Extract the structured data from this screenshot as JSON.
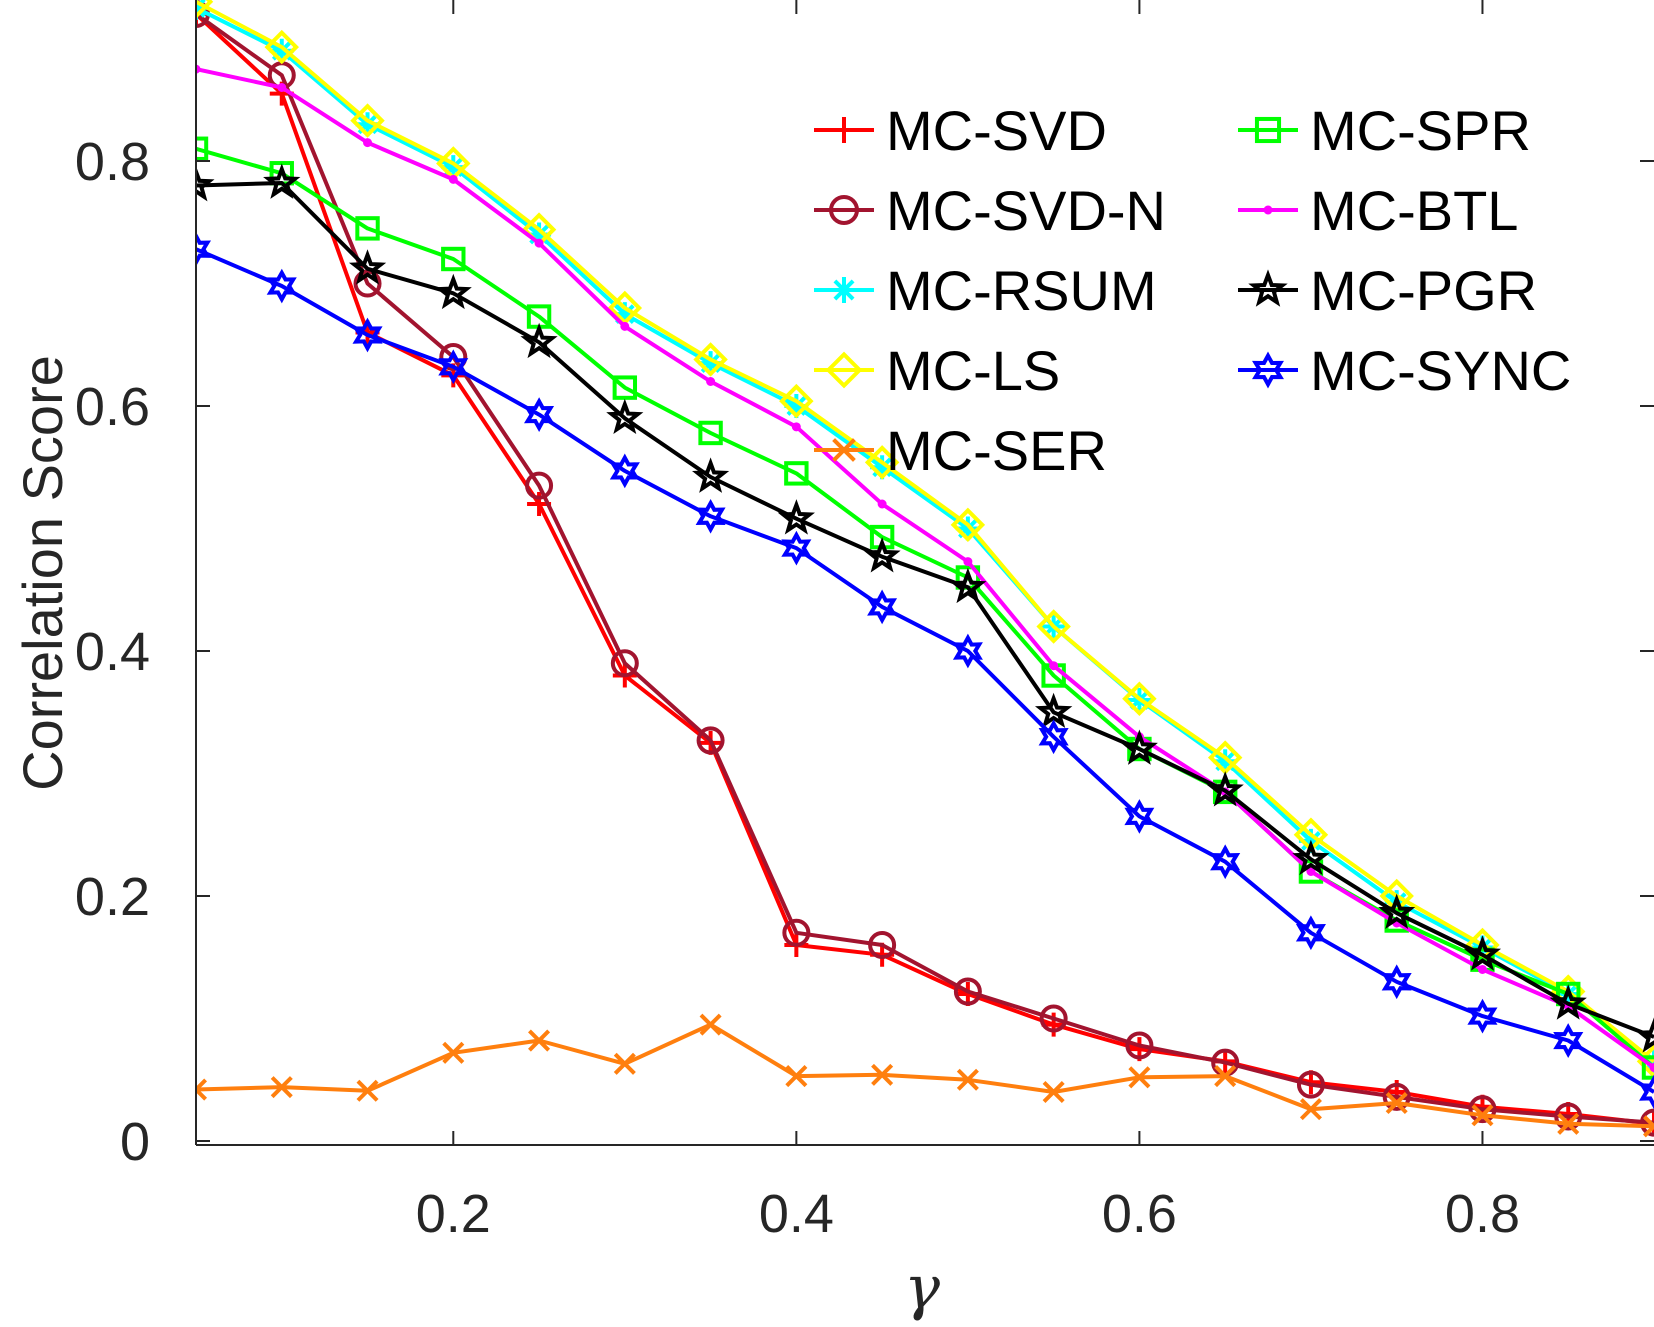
{
  "chart_data": {
    "type": "line",
    "title": "",
    "xlabel": "γ",
    "ylabel": "Correlation Score",
    "xlim": [
      0.05,
      0.9
    ],
    "ylim": [
      0,
      0.93
    ],
    "x_ticks": [
      0.2,
      0.4,
      0.6,
      0.8
    ],
    "x_tick_labels": [
      "0.2",
      "0.4",
      "0.6",
      "0.8"
    ],
    "y_ticks": [
      0,
      0.2,
      0.4,
      0.6,
      0.8
    ],
    "y_tick_labels": [
      "0",
      "0.2",
      "0.4",
      "0.6",
      "0.8"
    ],
    "grid": false,
    "legend_position": "top-right",
    "x": [
      0.05,
      0.1,
      0.15,
      0.2,
      0.25,
      0.3,
      0.35,
      0.4,
      0.45,
      0.5,
      0.55,
      0.6,
      0.65,
      0.7,
      0.75,
      0.8,
      0.85,
      0.9
    ],
    "series": [
      {
        "name": "MC-SVD",
        "color": "#ff0000",
        "marker": "plus",
        "values": [
          0.92,
          0.855,
          0.66,
          0.625,
          0.52,
          0.38,
          0.325,
          0.16,
          0.152,
          0.12,
          0.095,
          0.075,
          0.065,
          0.048,
          0.04,
          0.028,
          0.022,
          0.014
        ]
      },
      {
        "name": "MC-SVD-N",
        "color": "#a2142f",
        "marker": "circle",
        "values": [
          0.92,
          0.87,
          0.7,
          0.64,
          0.535,
          0.39,
          0.327,
          0.17,
          0.16,
          0.122,
          0.1,
          0.078,
          0.064,
          0.046,
          0.036,
          0.026,
          0.02,
          0.015
        ]
      },
      {
        "name": "MC-RSUM",
        "color": "#00ffff",
        "marker": "asterisk",
        "values": [
          0.925,
          0.89,
          0.83,
          0.795,
          0.74,
          0.675,
          0.635,
          0.6,
          0.55,
          0.5,
          0.42,
          0.36,
          0.31,
          0.245,
          0.195,
          0.158,
          0.12,
          0.065
        ]
      },
      {
        "name": "MC-LS",
        "color": "#ffff00",
        "marker": "diamond",
        "values": [
          0.93,
          0.893,
          0.833,
          0.798,
          0.744,
          0.68,
          0.638,
          0.604,
          0.554,
          0.503,
          0.42,
          0.361,
          0.313,
          0.25,
          0.2,
          0.16,
          0.122,
          0.065
        ]
      },
      {
        "name": "MC-SER",
        "color": "#ff7f0e",
        "marker": "x",
        "values": [
          0.042,
          0.044,
          0.041,
          0.072,
          0.082,
          0.063,
          0.095,
          0.053,
          0.054,
          0.05,
          0.04,
          0.052,
          0.053,
          0.026,
          0.031,
          0.021,
          0.014,
          0.012
        ]
      },
      {
        "name": "MC-SPR",
        "color": "#00ff00",
        "marker": "square",
        "values": [
          0.81,
          0.79,
          0.745,
          0.72,
          0.673,
          0.615,
          0.578,
          0.545,
          0.493,
          0.46,
          0.38,
          0.32,
          0.285,
          0.22,
          0.18,
          0.148,
          0.12,
          0.06
        ]
      },
      {
        "name": "MC-BTL",
        "color": "#ff00ff",
        "marker": "dot",
        "values": [
          0.875,
          0.86,
          0.815,
          0.785,
          0.733,
          0.665,
          0.62,
          0.583,
          0.52,
          0.473,
          0.388,
          0.33,
          0.285,
          0.22,
          0.178,
          0.14,
          0.11,
          0.06
        ]
      },
      {
        "name": "MC-PGR",
        "color": "#000000",
        "marker": "pentagram",
        "values": [
          0.78,
          0.782,
          0.712,
          0.692,
          0.652,
          0.59,
          0.542,
          0.508,
          0.477,
          0.452,
          0.35,
          0.32,
          0.286,
          0.23,
          0.186,
          0.152,
          0.112,
          0.085
        ]
      },
      {
        "name": "MC-SYNC",
        "color": "#0000ff",
        "marker": "hexagram",
        "values": [
          0.728,
          0.698,
          0.658,
          0.632,
          0.593,
          0.547,
          0.51,
          0.484,
          0.436,
          0.4,
          0.33,
          0.265,
          0.228,
          0.17,
          0.13,
          0.102,
          0.082,
          0.04
        ]
      }
    ]
  }
}
